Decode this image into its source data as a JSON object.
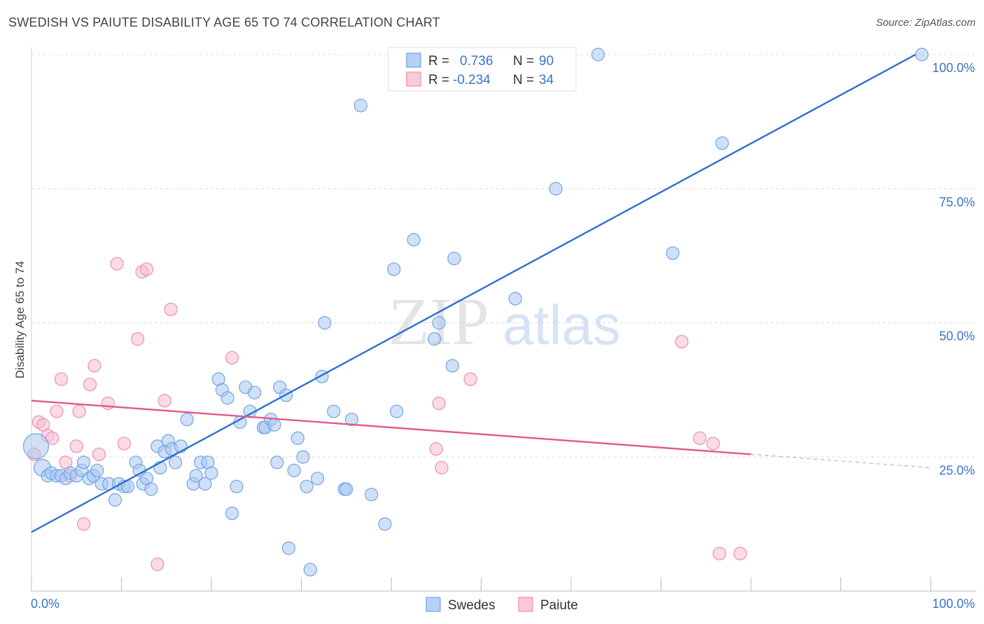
{
  "title": "SWEDISH VS PAIUTE DISABILITY AGE 65 TO 74 CORRELATION CHART",
  "source": "Source: ZipAtlas.com",
  "watermark": {
    "zip": "ZIP",
    "atlas": "atlas"
  },
  "legend_top": [
    {
      "r_label": "R =",
      "r_value": "0.736",
      "n_label": "N =",
      "n_value": "90",
      "color": "#6fa3e8"
    },
    {
      "r_label": "R =",
      "r_value": "-0.234",
      "n_label": "N =",
      "n_value": "34",
      "color": "#f08db0"
    }
  ],
  "chart_data": {
    "type": "scatter",
    "title": "SWEDISH VS PAIUTE DISABILITY AGE 65 TO 74 CORRELATION CHART",
    "xlabel": "",
    "ylabel": "Disability Age 65 to 74",
    "xlim": [
      0,
      100
    ],
    "ylim": [
      0,
      100
    ],
    "x_tick_labels": [
      "0.0%",
      "100.0%"
    ],
    "y_ticks": [
      25,
      50,
      75,
      100
    ],
    "y_tick_labels": [
      "25.0%",
      "50.0%",
      "75.0%",
      "100.0%"
    ],
    "grid": true,
    "legend_placement": "bottom",
    "series": [
      {
        "name": "Swedes",
        "color": "#6fa3e8",
        "trend": {
          "x": [
            0,
            98.3
          ],
          "y": [
            11.0,
            100.0
          ],
          "color": "#2e6fd1"
        },
        "points": [
          [
            0.5,
            27
          ],
          [
            1.2,
            23
          ],
          [
            1.8,
            21.5
          ],
          [
            2.2,
            22
          ],
          [
            2.8,
            21.5
          ],
          [
            3.3,
            21.5
          ],
          [
            3.8,
            21
          ],
          [
            4.3,
            22
          ],
          [
            5.0,
            21.5
          ],
          [
            5.6,
            22.5
          ],
          [
            5.8,
            24
          ],
          [
            6.4,
            21
          ],
          [
            6.9,
            21.5
          ],
          [
            7.3,
            22.5
          ],
          [
            7.8,
            20
          ],
          [
            8.6,
            20
          ],
          [
            9.3,
            17
          ],
          [
            9.7,
            20
          ],
          [
            10.3,
            19.5
          ],
          [
            10.7,
            19.5
          ],
          [
            11.6,
            24
          ],
          [
            12.0,
            22.5
          ],
          [
            12.4,
            20
          ],
          [
            12.8,
            21
          ],
          [
            13.3,
            19
          ],
          [
            14.0,
            27
          ],
          [
            14.3,
            23
          ],
          [
            14.8,
            26
          ],
          [
            15.2,
            28
          ],
          [
            15.6,
            26.5
          ],
          [
            16.0,
            24
          ],
          [
            16.6,
            27
          ],
          [
            17.3,
            32
          ],
          [
            18.0,
            20
          ],
          [
            18.3,
            21.5
          ],
          [
            18.8,
            24
          ],
          [
            19.3,
            20
          ],
          [
            19.6,
            24
          ],
          [
            20.0,
            22
          ],
          [
            20.8,
            39.5
          ],
          [
            21.2,
            37.5
          ],
          [
            21.8,
            36
          ],
          [
            22.3,
            14.5
          ],
          [
            22.8,
            19.5
          ],
          [
            23.2,
            31.5
          ],
          [
            23.8,
            38
          ],
          [
            24.3,
            33.5
          ],
          [
            24.8,
            37
          ],
          [
            25.8,
            30.5
          ],
          [
            26.0,
            30.5
          ],
          [
            26.6,
            32
          ],
          [
            27.3,
            24
          ],
          [
            27.6,
            38
          ],
          [
            28.3,
            36.5
          ],
          [
            28.6,
            8
          ],
          [
            29.2,
            22.5
          ],
          [
            29.6,
            28.5
          ],
          [
            30.2,
            25
          ],
          [
            30.6,
            19.5
          ],
          [
            31.0,
            4
          ],
          [
            31.8,
            21
          ],
          [
            32.3,
            40
          ],
          [
            32.6,
            50
          ],
          [
            33.6,
            33.5
          ],
          [
            34.8,
            19
          ],
          [
            35.0,
            19
          ],
          [
            35.6,
            32
          ],
          [
            36.6,
            90.5
          ],
          [
            37.8,
            18
          ],
          [
            39.3,
            12.5
          ],
          [
            40.3,
            60
          ],
          [
            40.6,
            33.5
          ],
          [
            42.5,
            65.5
          ],
          [
            43.0,
            100
          ],
          [
            44.8,
            47
          ],
          [
            45.3,
            50
          ],
          [
            46.0,
            100
          ],
          [
            46.8,
            42
          ],
          [
            47.0,
            62
          ],
          [
            48.5,
            100
          ],
          [
            50.0,
            97
          ],
          [
            53.8,
            54.5
          ],
          [
            58.3,
            75
          ],
          [
            63.0,
            100
          ],
          [
            71.3,
            63
          ],
          [
            76.8,
            83.5
          ],
          [
            99.0,
            100
          ],
          [
            43.5,
            100
          ],
          [
            47.5,
            100
          ],
          [
            27.0,
            31
          ]
        ]
      },
      {
        "name": "Paiute",
        "color": "#f08db0",
        "trend": {
          "x": [
            0,
            80
          ],
          "y": [
            35.5,
            25.5
          ],
          "x_dash_end": 100,
          "y_dash_end": 23.0,
          "color": "#e05a8a"
        },
        "points": [
          [
            0.3,
            25.5
          ],
          [
            0.8,
            31.5
          ],
          [
            1.3,
            31
          ],
          [
            1.8,
            29
          ],
          [
            2.3,
            28.5
          ],
          [
            2.8,
            33.5
          ],
          [
            3.3,
            39.5
          ],
          [
            3.8,
            24
          ],
          [
            4.3,
            21.5
          ],
          [
            5.0,
            27
          ],
          [
            5.3,
            33.5
          ],
          [
            5.8,
            12.5
          ],
          [
            6.5,
            38.5
          ],
          [
            7.0,
            42
          ],
          [
            7.5,
            25.5
          ],
          [
            8.5,
            35
          ],
          [
            9.5,
            61
          ],
          [
            10.3,
            27.5
          ],
          [
            11.8,
            47
          ],
          [
            12.3,
            59.5
          ],
          [
            12.8,
            60
          ],
          [
            14.0,
            5
          ],
          [
            14.8,
            35.5
          ],
          [
            15.5,
            52.5
          ],
          [
            22.3,
            43.5
          ],
          [
            45.0,
            26.5
          ],
          [
            45.6,
            23
          ],
          [
            45.3,
            35
          ],
          [
            48.8,
            39.5
          ],
          [
            72.3,
            46.5
          ],
          [
            74.3,
            28.5
          ],
          [
            75.8,
            27.5
          ],
          [
            76.5,
            7
          ],
          [
            78.8,
            7
          ]
        ]
      }
    ]
  }
}
